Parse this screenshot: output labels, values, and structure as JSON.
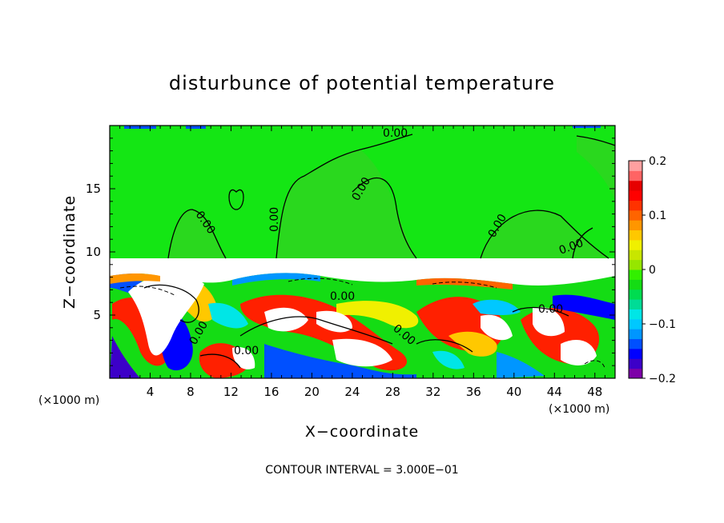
{
  "chart_data": {
    "type": "heatmap",
    "title": "disturbunce of potential temperature",
    "xlabel": "X−coordinate",
    "ylabel": "Z−coordinate",
    "x_unit_label": "(×1000 m)",
    "y_unit_label": "(×1000 m)",
    "xlim": [
      0,
      50
    ],
    "ylim": [
      0,
      20
    ],
    "x_ticks": [
      "4",
      "8",
      "12",
      "16",
      "20",
      "24",
      "28",
      "32",
      "36",
      "40",
      "44",
      "48"
    ],
    "y_ticks": [
      "5",
      "10",
      "15"
    ],
    "colorbar": {
      "range": [
        -0.2,
        0.2
      ],
      "ticks": [
        "0.2",
        "0.1",
        "0",
        "−0.1",
        "−0.2"
      ],
      "colors": [
        "#7d00a8",
        "#3c00c8",
        "#0000ff",
        "#0050ff",
        "#0096ff",
        "#00c8ff",
        "#00e6e6",
        "#00dc96",
        "#00dc50",
        "#14dc14",
        "#32f000",
        "#96e600",
        "#c8e600",
        "#f0f000",
        "#ffc800",
        "#ff9600",
        "#ff6400",
        "#ff3200",
        "#ff0000",
        "#e60000",
        "#ff6464",
        "#ffa0a0"
      ]
    },
    "contour_labels": [
      "0.00",
      "0.00",
      "0.00",
      "0.00",
      "0.00",
      "0.00",
      "0.00",
      "0.00",
      "0.00",
      "0.00",
      "0.00"
    ],
    "contour_interval_text": "CONTOUR INTERVAL = 3.000E−01"
  }
}
